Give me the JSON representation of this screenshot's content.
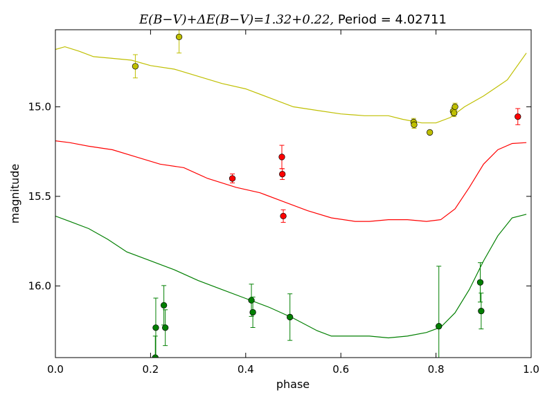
{
  "chart_data": {
    "type": "scatter",
    "title": "E(B-V)+ΔE(B-V)=1.32+0.22, Period = 4.02711",
    "title_math": "E(B−V)+ΔE(B−V)=1.32+0.22,",
    "title_tail": " Period = 4.02711",
    "xlabel": "phase",
    "ylabel": "magnitude",
    "xlim": [
      0.0,
      1.0
    ],
    "ylim": [
      16.4,
      14.57
    ],
    "y_inverted": true,
    "grid": false,
    "x_ticks": [
      0.0,
      0.2,
      0.4,
      0.6,
      0.8,
      1.0
    ],
    "x_tick_labels": [
      "0.0",
      "0.2",
      "0.4",
      "0.6",
      "0.8",
      "1.0"
    ],
    "y_ticks": [
      15.0,
      15.5,
      16.0
    ],
    "y_tick_labels": [
      "15.0",
      "15.5",
      "16.0"
    ],
    "series": [
      {
        "color": "#bfbf00",
        "points": [
          {
            "x": 0.168,
            "y": 14.774,
            "err": 0.065
          },
          {
            "x": 0.26,
            "y": 14.61,
            "err": 0.09
          },
          {
            "x": 0.753,
            "y": 15.085,
            "err": 0.02
          },
          {
            "x": 0.754,
            "y": 15.1,
            "err": 0.02
          },
          {
            "x": 0.787,
            "y": 15.143,
            "err": 0.01
          },
          {
            "x": 0.836,
            "y": 15.025,
            "err": 0.02
          },
          {
            "x": 0.838,
            "y": 15.035,
            "err": 0.02
          },
          {
            "x": 0.84,
            "y": 15.0,
            "err": 0.02
          }
        ],
        "curve": [
          [
            0.0,
            14.68
          ],
          [
            0.02,
            14.665
          ],
          [
            0.05,
            14.69
          ],
          [
            0.08,
            14.72
          ],
          [
            0.12,
            14.73
          ],
          [
            0.16,
            14.74
          ],
          [
            0.2,
            14.77
          ],
          [
            0.25,
            14.79
          ],
          [
            0.3,
            14.83
          ],
          [
            0.35,
            14.87
          ],
          [
            0.4,
            14.9
          ],
          [
            0.45,
            14.95
          ],
          [
            0.5,
            15.0
          ],
          [
            0.55,
            15.02
          ],
          [
            0.6,
            15.04
          ],
          [
            0.65,
            15.05
          ],
          [
            0.7,
            15.05
          ],
          [
            0.73,
            15.07
          ],
          [
            0.77,
            15.09
          ],
          [
            0.8,
            15.09
          ],
          [
            0.83,
            15.06
          ],
          [
            0.86,
            15.0
          ],
          [
            0.9,
            14.94
          ],
          [
            0.95,
            14.85
          ],
          [
            0.99,
            14.7
          ]
        ]
      },
      {
        "color": "#ff0000",
        "points": [
          {
            "x": 0.372,
            "y": 15.4,
            "err": 0.025
          },
          {
            "x": 0.476,
            "y": 15.28,
            "err": 0.065
          },
          {
            "x": 0.477,
            "y": 15.376,
            "err": 0.03
          },
          {
            "x": 0.479,
            "y": 15.61,
            "err": 0.035
          },
          {
            "x": 0.972,
            "y": 15.055,
            "err": 0.045
          }
        ],
        "curve": [
          [
            0.0,
            15.19
          ],
          [
            0.03,
            15.2
          ],
          [
            0.07,
            15.22
          ],
          [
            0.12,
            15.24
          ],
          [
            0.17,
            15.28
          ],
          [
            0.22,
            15.32
          ],
          [
            0.27,
            15.34
          ],
          [
            0.32,
            15.4
          ],
          [
            0.38,
            15.45
          ],
          [
            0.43,
            15.48
          ],
          [
            0.48,
            15.53
          ],
          [
            0.53,
            15.58
          ],
          [
            0.58,
            15.62
          ],
          [
            0.63,
            15.64
          ],
          [
            0.66,
            15.64
          ],
          [
            0.7,
            15.63
          ],
          [
            0.74,
            15.63
          ],
          [
            0.78,
            15.64
          ],
          [
            0.81,
            15.63
          ],
          [
            0.84,
            15.57
          ],
          [
            0.87,
            15.45
          ],
          [
            0.9,
            15.32
          ],
          [
            0.93,
            15.24
          ],
          [
            0.96,
            15.205
          ],
          [
            0.99,
            15.2
          ]
        ]
      },
      {
        "color": "#007f00",
        "points": [
          {
            "x": 0.21,
            "y": 16.4,
            "err": 0.12
          },
          {
            "x": 0.211,
            "y": 16.233,
            "err": 0.165
          },
          {
            "x": 0.228,
            "y": 16.108,
            "err": 0.11
          },
          {
            "x": 0.231,
            "y": 16.233,
            "err": 0.1
          },
          {
            "x": 0.412,
            "y": 16.08,
            "err": 0.09
          },
          {
            "x": 0.415,
            "y": 16.147,
            "err": 0.085
          },
          {
            "x": 0.493,
            "y": 16.174,
            "err": 0.13
          },
          {
            "x": 0.806,
            "y": 16.225,
            "err": 0.335
          },
          {
            "x": 0.893,
            "y": 15.98,
            "err": 0.11
          },
          {
            "x": 0.895,
            "y": 16.14,
            "err": 0.1
          }
        ],
        "curve": [
          [
            0.0,
            15.61
          ],
          [
            0.03,
            15.64
          ],
          [
            0.07,
            15.68
          ],
          [
            0.11,
            15.74
          ],
          [
            0.15,
            15.81
          ],
          [
            0.2,
            15.86
          ],
          [
            0.25,
            15.91
          ],
          [
            0.3,
            15.97
          ],
          [
            0.35,
            16.02
          ],
          [
            0.4,
            16.07
          ],
          [
            0.45,
            16.12
          ],
          [
            0.5,
            16.18
          ],
          [
            0.55,
            16.25
          ],
          [
            0.58,
            16.28
          ],
          [
            0.62,
            16.28
          ],
          [
            0.66,
            16.28
          ],
          [
            0.7,
            16.29
          ],
          [
            0.74,
            16.28
          ],
          [
            0.78,
            16.26
          ],
          [
            0.81,
            16.23
          ],
          [
            0.84,
            16.15
          ],
          [
            0.87,
            16.02
          ],
          [
            0.9,
            15.86
          ],
          [
            0.93,
            15.72
          ],
          [
            0.96,
            15.62
          ],
          [
            0.99,
            15.6
          ]
        ]
      }
    ]
  }
}
